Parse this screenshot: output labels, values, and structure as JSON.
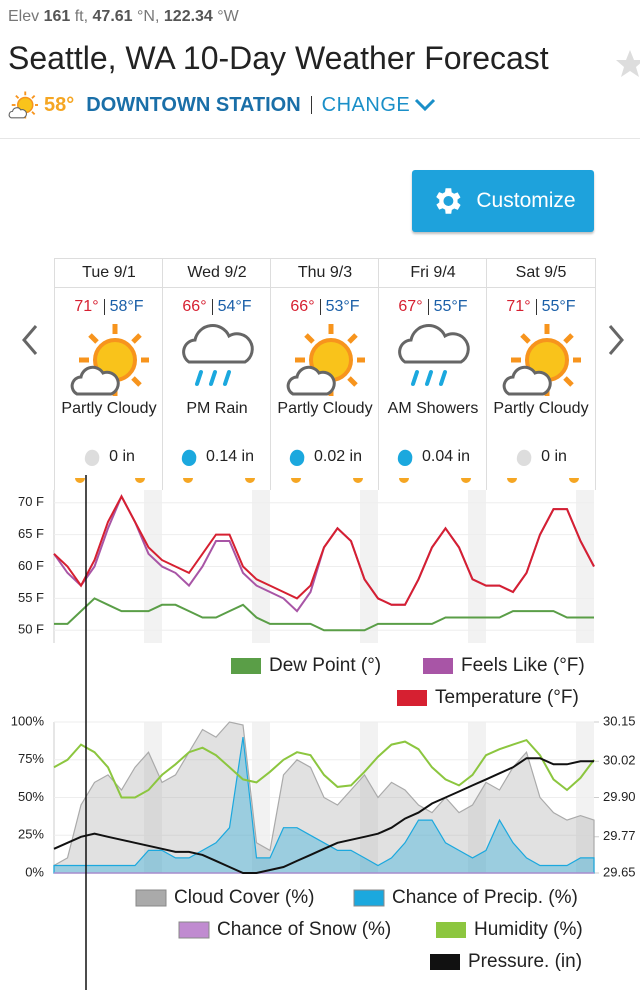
{
  "header": {
    "elev_label": "Elev",
    "elevation": "161",
    "elev_unit": "ft,",
    "latitude": "47.61",
    "lat_unit": "°N,",
    "longitude": "122.34",
    "lon_unit": "°W",
    "title": "Seattle, WA 10-Day Weather Forecast",
    "current_temp": "58°",
    "station": "DOWNTOWN STATION",
    "change": "CHANGE"
  },
  "customize": "Customize",
  "forecast": {
    "days": [
      {
        "day": "Tue 9/1",
        "high": "71°",
        "low": "58°F",
        "condition": "Partly Cloudy",
        "precip": "0 in"
      },
      {
        "day": "Wed 9/2",
        "high": "66°",
        "low": "54°F",
        "condition": "PM Rain",
        "precip": "0.14 in"
      },
      {
        "day": "Thu 9/3",
        "high": "66°",
        "low": "53°F",
        "condition": "Partly Cloudy",
        "precip": "0.02 in"
      },
      {
        "day": "Fri 9/4",
        "high": "67°",
        "low": "55°F",
        "condition": "AM Showers",
        "precip": "0.04 in"
      },
      {
        "day": "Sat 9/5",
        "high": "71°",
        "low": "55°F",
        "condition": "Partly Cloudy",
        "precip": "0 in"
      }
    ]
  },
  "chart_data": [
    {
      "type": "line",
      "ylim": [
        48,
        72
      ],
      "yticks": [
        {
          "value": 50,
          "label": "50 F"
        },
        {
          "value": 55,
          "label": "55 F"
        },
        {
          "value": 60,
          "label": "60 F"
        },
        {
          "value": 65,
          "label": "65 F"
        },
        {
          "value": 70,
          "label": "70 F"
        }
      ],
      "grid": true,
      "series": [
        {
          "name": "Dew Point (°)",
          "color": "#5a9e47",
          "values": [
            51,
            51,
            53,
            55,
            54,
            53,
            53,
            53,
            54,
            54,
            53,
            52,
            52,
            53,
            54,
            52,
            51,
            51,
            51,
            51,
            50,
            50,
            50,
            50,
            51,
            51,
            51,
            51,
            51,
            52,
            52,
            52,
            52,
            52,
            53,
            53,
            53,
            53,
            52,
            52,
            52
          ]
        },
        {
          "name": "Feels Like (°F)",
          "color": "#a855a6",
          "values": [
            62,
            59,
            57,
            60,
            66,
            71,
            67,
            62,
            60,
            59,
            57,
            60,
            64,
            64,
            59,
            57,
            56,
            55,
            53,
            56,
            63,
            66,
            64,
            58,
            55,
            54,
            54,
            58,
            63,
            66,
            63,
            58,
            57,
            57,
            56,
            59,
            65,
            69,
            69,
            64,
            60
          ]
        },
        {
          "name": "Temperature (°F)",
          "color": "#d62031",
          "values": [
            62,
            60,
            57,
            61,
            67,
            71,
            67,
            63,
            61,
            60,
            59,
            62,
            65,
            65,
            60,
            58,
            57,
            56,
            55,
            57,
            63,
            66,
            64,
            58,
            55,
            54,
            54,
            58,
            63,
            66,
            63,
            58,
            57,
            57,
            56,
            59,
            65,
            69,
            69,
            64,
            60
          ]
        }
      ]
    },
    {
      "type": "line",
      "ylim": [
        0,
        100
      ],
      "yticks": [
        {
          "value": 0,
          "label": "0%"
        },
        {
          "value": 25,
          "label": "25%"
        },
        {
          "value": 50,
          "label": "50%"
        },
        {
          "value": 75,
          "label": "75%"
        },
        {
          "value": 100,
          "label": "100%"
        }
      ],
      "y2lim": [
        29.65,
        30.15
      ],
      "y2ticks": [
        29.65,
        29.77,
        {
          "value": 29.9,
          "label": "29.90"
        },
        30.02,
        30.15
      ],
      "grid": true,
      "series": [
        {
          "name": "Cloud Cover (%)",
          "type": "area",
          "color": "#aaaaaa",
          "values": [
            5,
            10,
            45,
            60,
            65,
            55,
            70,
            80,
            60,
            65,
            80,
            95,
            90,
            100,
            98,
            20,
            15,
            65,
            75,
            70,
            50,
            45,
            55,
            65,
            50,
            60,
            55,
            45,
            40,
            50,
            40,
            45,
            60,
            55,
            70,
            80,
            50,
            40,
            35,
            38,
            35
          ]
        },
        {
          "name": "Chance of Precip. (%)",
          "type": "area",
          "color": "#1ba8de",
          "values": [
            5,
            5,
            5,
            5,
            5,
            5,
            5,
            15,
            15,
            10,
            10,
            15,
            20,
            30,
            90,
            10,
            10,
            30,
            30,
            25,
            20,
            15,
            15,
            10,
            5,
            10,
            20,
            35,
            35,
            20,
            15,
            10,
            15,
            35,
            20,
            10,
            5,
            5,
            5,
            10,
            10
          ]
        },
        {
          "name": "Chance of Snow (%)",
          "type": "area",
          "color": "#c08bd0",
          "values": [
            0,
            0,
            0,
            0,
            0,
            0,
            0,
            0,
            0,
            0,
            0,
            0,
            0,
            0,
            0,
            0,
            0,
            0,
            0,
            0,
            0,
            0,
            0,
            0,
            0,
            0,
            0,
            0,
            0,
            0,
            0,
            0,
            0,
            0,
            0,
            0,
            0,
            0,
            0,
            0,
            0
          ]
        },
        {
          "name": "Humidity (%)",
          "color": "#8cc63f",
          "values": [
            70,
            75,
            85,
            80,
            70,
            50,
            50,
            55,
            65,
            72,
            80,
            83,
            78,
            70,
            62,
            60,
            67,
            75,
            80,
            78,
            65,
            57,
            58,
            67,
            77,
            85,
            87,
            82,
            70,
            62,
            58,
            65,
            78,
            82,
            85,
            88,
            78,
            62,
            55,
            63,
            75
          ]
        },
        {
          "name": "Pressure. (in)",
          "color": "#111111",
          "axis": "y2",
          "values": [
            29.73,
            29.75,
            29.77,
            29.78,
            29.77,
            29.76,
            29.75,
            29.74,
            29.73,
            29.72,
            29.72,
            29.71,
            29.69,
            29.67,
            29.65,
            29.65,
            29.66,
            29.67,
            29.69,
            29.71,
            29.73,
            29.75,
            29.76,
            29.77,
            29.78,
            29.8,
            29.83,
            29.85,
            29.88,
            29.9,
            29.92,
            29.94,
            29.96,
            29.98,
            30.0,
            30.03,
            30.03,
            30.01,
            30.01,
            30.02,
            30.02
          ]
        }
      ]
    }
  ]
}
